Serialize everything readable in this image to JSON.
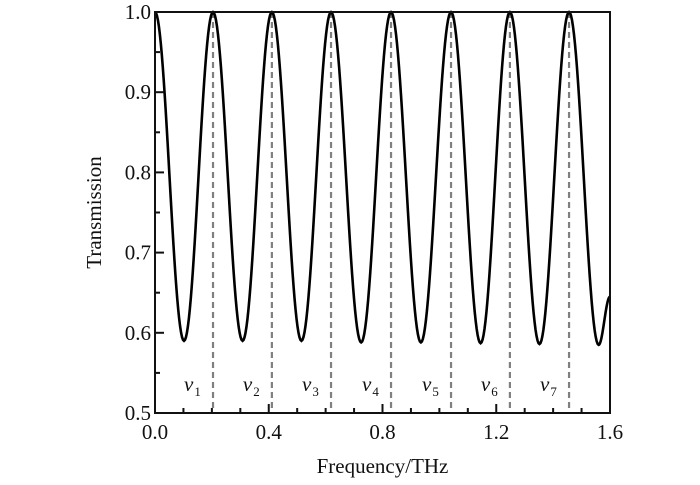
{
  "chart_data": {
    "type": "line",
    "title": "",
    "xlabel": "Frequency/THz",
    "ylabel": "Transmission",
    "xlim": [
      0.0,
      1.6
    ],
    "ylim": [
      0.5,
      1.0
    ],
    "x_ticks": [
      "0.0",
      "0.4",
      "0.8",
      "1.2",
      "1.6"
    ],
    "y_ticks": [
      "0.5",
      "0.6",
      "0.7",
      "0.8",
      "0.9",
      "1.0"
    ],
    "grid": false,
    "series": [
      {
        "color": "#000000",
        "extrema": [
          [
            0.0,
            1.0
          ],
          [
            0.102,
            0.59
          ],
          [
            0.204,
            1.0
          ],
          [
            0.308,
            0.59
          ],
          [
            0.411,
            1.0
          ],
          [
            0.515,
            0.59
          ],
          [
            0.619,
            1.0
          ],
          [
            0.725,
            0.588
          ],
          [
            0.83,
            1.0
          ],
          [
            0.935,
            0.588
          ],
          [
            1.041,
            1.0
          ],
          [
            1.145,
            0.587
          ],
          [
            1.248,
            1.0
          ],
          [
            1.352,
            0.586
          ],
          [
            1.456,
            1.0
          ],
          [
            1.56,
            0.585
          ],
          [
            1.6,
            0.645
          ]
        ]
      }
    ],
    "markers": [
      {
        "symbol": "v",
        "sub": "1",
        "x": 0.204
      },
      {
        "symbol": "v",
        "sub": "2",
        "x": 0.411
      },
      {
        "symbol": "v",
        "sub": "3",
        "x": 0.619
      },
      {
        "symbol": "v",
        "sub": "4",
        "x": 0.83
      },
      {
        "symbol": "v",
        "sub": "5",
        "x": 1.041
      },
      {
        "symbol": "v",
        "sub": "6",
        "x": 1.248
      },
      {
        "symbol": "v",
        "sub": "7",
        "x": 1.456
      }
    ],
    "marker_line_color": "#808080"
  }
}
